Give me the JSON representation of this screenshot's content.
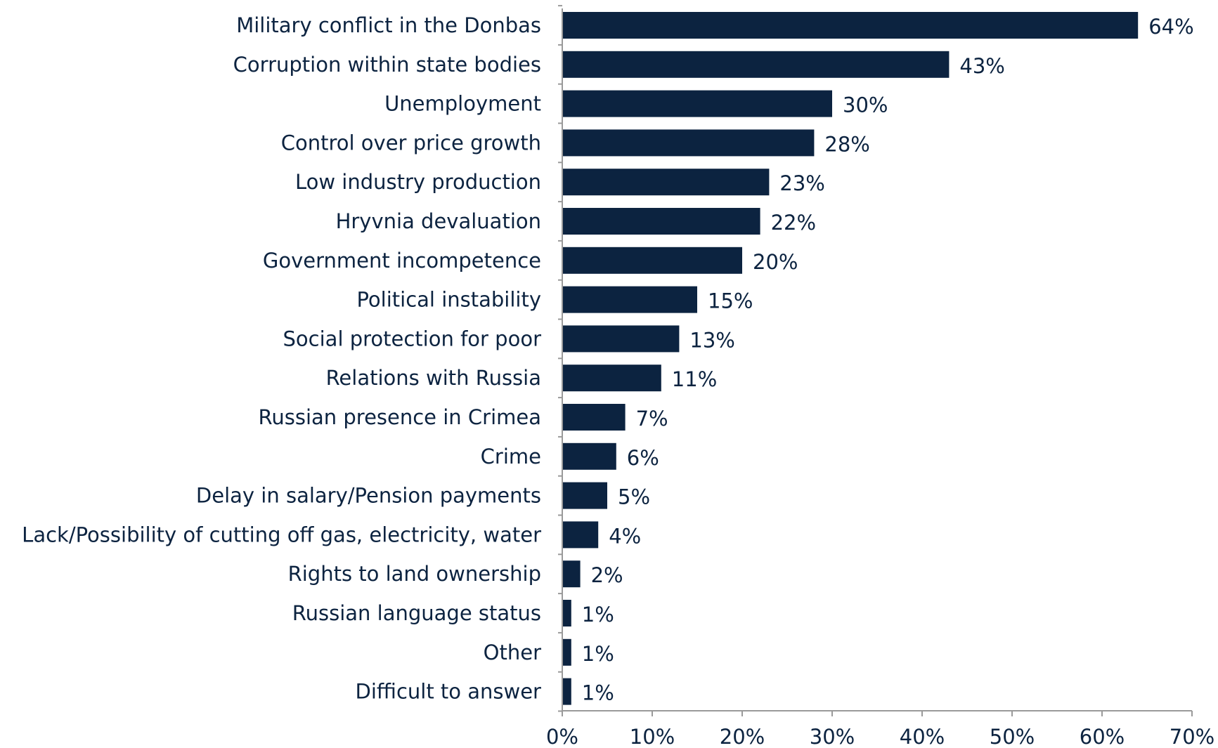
{
  "chart_data": {
    "type": "bar",
    "orientation": "horizontal",
    "title": "",
    "xlabel": "",
    "ylabel": "",
    "categories": [
      "Military conflict in the Donbas",
      "Corruption within state bodies",
      "Unemployment",
      "Control over price growth",
      "Low industry production",
      "Hryvnia devaluation",
      "Government incompetence",
      "Political instability",
      "Social protection for poor",
      "Relations with Russia",
      "Russian presence in Crimea",
      "Crime",
      "Delay in salary/Pension payments",
      "Lack/Possibility of cutting off gas, electricity, water",
      "Rights to land ownership",
      "Russian language status",
      "Other",
      "Difficult to answer"
    ],
    "values": [
      64,
      43,
      30,
      28,
      23,
      22,
      20,
      15,
      13,
      11,
      7,
      6,
      5,
      4,
      2,
      1,
      1,
      1
    ],
    "data_labels": [
      "64%",
      "43%",
      "30%",
      "28%",
      "23%",
      "22%",
      "20%",
      "15%",
      "13%",
      "11%",
      "7%",
      "6%",
      "5%",
      "4%",
      "2%",
      "1%",
      "1%",
      "1%"
    ],
    "xlim": [
      0,
      70
    ],
    "xticks": [
      0,
      10,
      20,
      30,
      40,
      50,
      60,
      70
    ],
    "xtick_labels": [
      "0%",
      "10%",
      "20%",
      "30%",
      "40%",
      "50%",
      "60%",
      "70%"
    ],
    "grid": false,
    "legend": "none",
    "bar_color": "#0c2340",
    "text_color": "#0c2340",
    "axis_color": "#9a9a9a"
  }
}
